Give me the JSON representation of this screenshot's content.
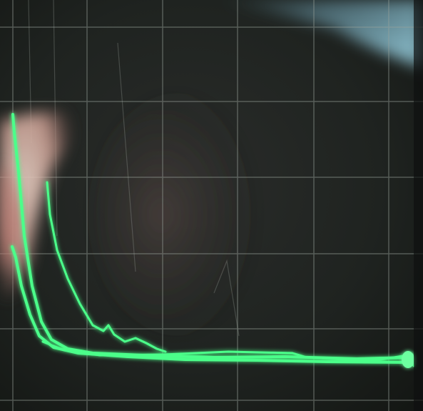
{
  "photo": {
    "subject": "oscilloscope-screen",
    "screen_color": "#1f2421",
    "reflection_color": "#7fb0c0",
    "trace_color": "#4cff8a",
    "trace_glow_color": "#2bd96a",
    "graticule_color": "#9aa39c",
    "finger_color": "#d9c2b5",
    "finger_shadow_color": "#b97f77"
  }
}
